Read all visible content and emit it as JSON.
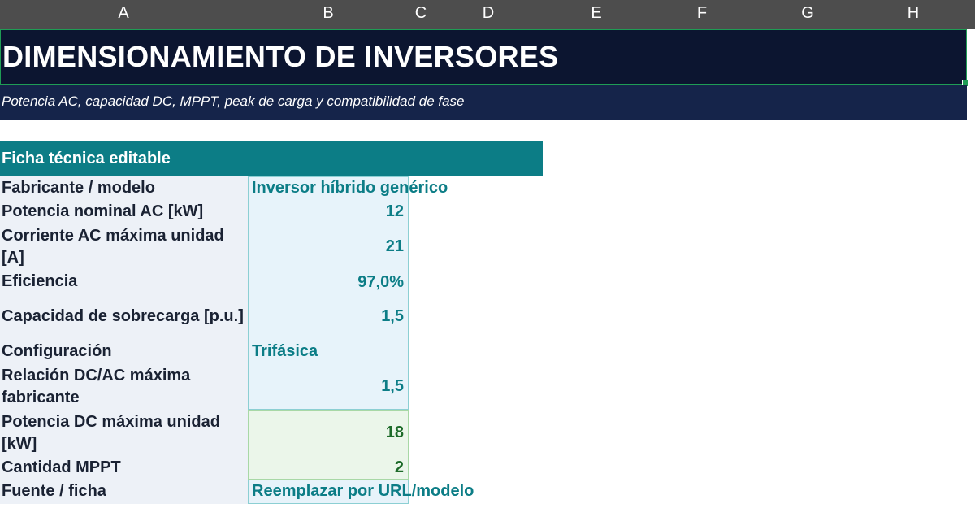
{
  "columns": [
    "A",
    "B",
    "C",
    "D",
    "E",
    "F",
    "G",
    "H"
  ],
  "title": "DIMENSIONAMIENTO DE INVERSORES",
  "subtitle": "Potencia AC, capacidad DC, MPPT, peak de carga y compatibilidad de fase",
  "section_title": "Ficha técnica editable",
  "rows": [
    {
      "label": "Fabricante / modelo",
      "value": "Inversor híbrido genérico"
    },
    {
      "label": "Potencia nominal AC [kW]",
      "value": "12"
    },
    {
      "label": "Corriente AC máxima unidad [A]",
      "value": "21"
    },
    {
      "label": "Eficiencia",
      "value": "97,0%"
    },
    {
      "label": "Capacidad de sobrecarga [p.u.]",
      "value": "1,5"
    },
    {
      "label": "Configuración",
      "value": "Trifásica"
    },
    {
      "label": "Relación DC/AC máxima fabricante",
      "value": "1,5"
    },
    {
      "label": "Potencia DC máxima unidad [kW]",
      "value": "18"
    },
    {
      "label": "Cantidad MPPT",
      "value": "2"
    },
    {
      "label": "Fuente / ficha",
      "value": "Reemplazar por URL/modelo"
    }
  ],
  "colors": {
    "header_bar": "#4d4d4d",
    "title_band": "#0c1530",
    "subtitle_band": "#15244a",
    "section_header": "#0c7d86",
    "label_fill": "#edf1f7",
    "input_fill": "#e7f3fa",
    "calc_fill": "#ebf6ea",
    "input_text": "#0c7d86",
    "calc_text": "#1e6b2a",
    "selection": "#1f9d55"
  }
}
